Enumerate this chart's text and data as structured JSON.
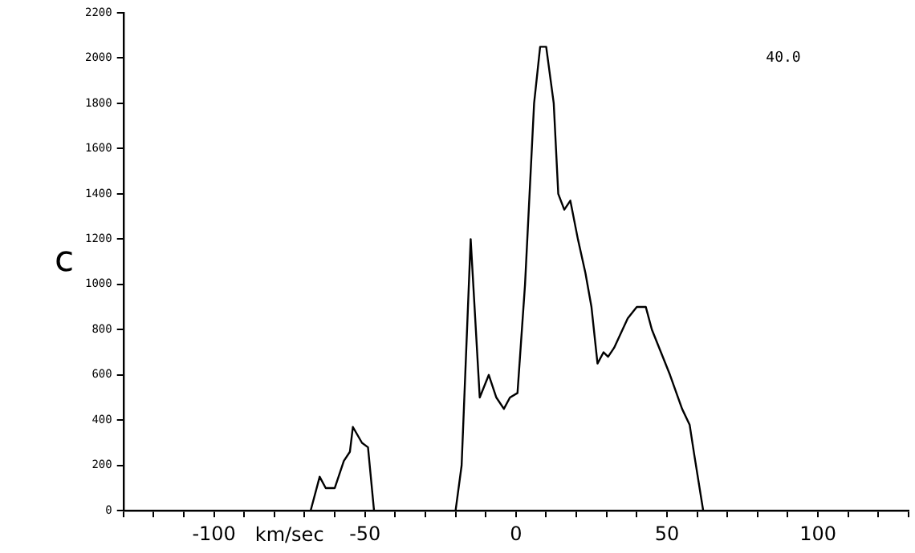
{
  "chart_data": {
    "type": "line",
    "xlabel": "km/sec",
    "annotations": [
      "c",
      "40.0"
    ],
    "x": [
      -130,
      -68,
      -65,
      -63,
      -60,
      -57,
      -55,
      -54,
      -51,
      -49,
      -47,
      -20,
      -18,
      -15,
      -12,
      -9,
      -6.5,
      -4,
      -2,
      0.5,
      3,
      6,
      8,
      10,
      12.5,
      14,
      16,
      18,
      20.5,
      23,
      25,
      27,
      29,
      30.5,
      32.5,
      37,
      40,
      43,
      45,
      48,
      51,
      55,
      57.5,
      59,
      62,
      130
    ],
    "values": [
      0,
      0,
      150,
      100,
      100,
      220,
      260,
      370,
      300,
      280,
      0,
      0,
      200,
      1200,
      500,
      600,
      500,
      450,
      500,
      520,
      1000,
      1800,
      2050,
      2050,
      1800,
      1400,
      1330,
      1370,
      1200,
      1050,
      900,
      650,
      700,
      680,
      720,
      850,
      900,
      900,
      800,
      700,
      600,
      450,
      380,
      250,
      0,
      0
    ],
    "color": "#000000",
    "marker": "none",
    "line_style": "solid",
    "legend": false,
    "grid": false,
    "xlim": [
      -130,
      130
    ],
    "ylim": [
      0,
      2200
    ],
    "xticks": [
      {
        "value": -130,
        "label": null
      },
      {
        "value": -120,
        "label": null
      },
      {
        "value": -110,
        "label": null
      },
      -100,
      {
        "value": -90,
        "label": null
      },
      {
        "value": -80,
        "label": null
      },
      {
        "value": -70,
        "label": null
      },
      {
        "value": -60,
        "label": null
      },
      -50,
      {
        "value": -40,
        "label": null
      },
      {
        "value": -30,
        "label": null
      },
      {
        "value": -20,
        "label": null
      },
      {
        "value": -10,
        "label": null
      },
      0,
      {
        "value": 10,
        "label": null
      },
      {
        "value": 20,
        "label": null
      },
      {
        "value": 30,
        "label": null
      },
      {
        "value": 40,
        "label": null
      },
      50,
      {
        "value": 60,
        "label": null
      },
      {
        "value": 70,
        "label": null
      },
      {
        "value": 80,
        "label": null
      },
      {
        "value": 90,
        "label": null
      },
      100,
      {
        "value": 110,
        "label": null
      },
      {
        "value": 120,
        "label": null
      },
      {
        "value": 130,
        "label": null
      }
    ],
    "yticks": [
      0,
      200,
      400,
      600,
      800,
      1000,
      1200,
      1400,
      1600,
      1800,
      2000,
      2200
    ]
  }
}
